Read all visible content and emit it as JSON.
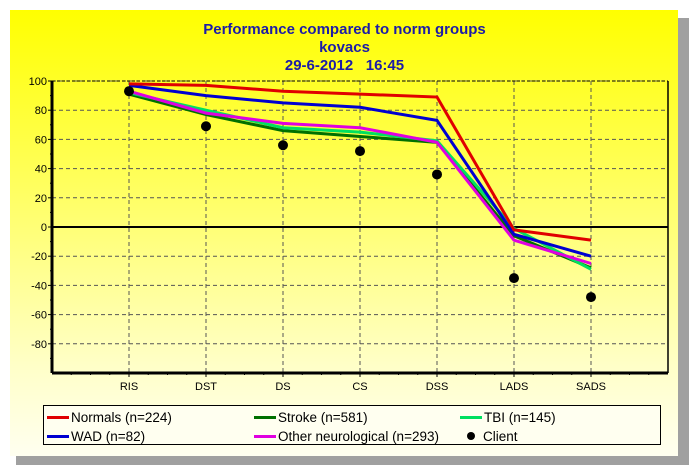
{
  "chart_data": {
    "type": "line",
    "title": "Performance compared to norm groups",
    "subtitle": "kovacs",
    "date": "29-6-2012   16:45",
    "categories": [
      "RIS",
      "DST",
      "DS",
      "CS",
      "DSS",
      "LADS",
      "SADS"
    ],
    "ylim": [
      -100,
      100
    ],
    "yticks": [
      100,
      80,
      60,
      40,
      20,
      0,
      -20,
      -40,
      -60,
      -80
    ],
    "grid": true,
    "legend_position": "bottom",
    "series": [
      {
        "name": "Normals (n=224)",
        "color": "#e00000",
        "values": [
          98,
          97,
          93,
          91,
          89,
          -2,
          -9
        ]
      },
      {
        "name": "WAD (n=82)",
        "color": "#0000d0",
        "values": [
          97,
          90,
          85,
          82,
          73,
          -5,
          -20
        ]
      },
      {
        "name": "Stroke (n=581)",
        "color": "#007000",
        "values": [
          91,
          77,
          66,
          62,
          58,
          -6,
          -28
        ]
      },
      {
        "name": "TBI (n=145)",
        "color": "#00e060",
        "values": [
          92,
          80,
          68,
          65,
          59,
          -1,
          -29
        ]
      },
      {
        "name": "Other neurological (n=293)",
        "color": "#e000e0",
        "values": [
          93,
          78,
          71,
          68,
          58,
          -9,
          -25
        ]
      },
      {
        "name": "Client",
        "color": "#000000",
        "marker": "dot",
        "values": [
          93,
          69,
          56,
          52,
          36,
          -35,
          -48
        ]
      }
    ]
  }
}
